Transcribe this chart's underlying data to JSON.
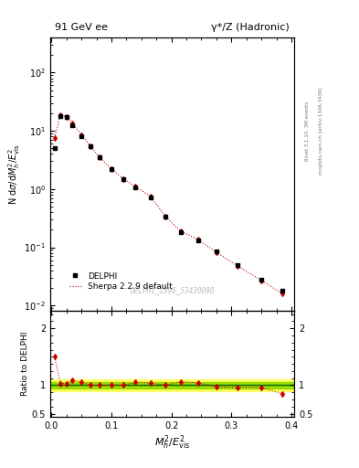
{
  "title_left": "91 GeV ee",
  "title_right": "γ*/Z (Hadronic)",
  "ylabel_main": "N dσ/dMᴴ²/E²_vis",
  "ylabel_ratio": "Ratio to DELPHI",
  "xlabel": "M²_h/E²_vis",
  "watermark": "DELPHI_1996_S3430090",
  "right_label_top": "Rivet 3.1.10, 3M events",
  "right_label_bottom": "mcplots.cern.ch [arXiv:1306.3436]",
  "delphi_x": [
    0.005,
    0.015,
    0.025,
    0.035,
    0.05,
    0.065,
    0.08,
    0.1,
    0.12,
    0.14,
    0.165,
    0.19,
    0.215,
    0.245,
    0.275,
    0.31,
    0.35,
    0.385
  ],
  "delphi_y": [
    5.0,
    18.0,
    17.0,
    12.5,
    8.0,
    5.5,
    3.5,
    2.2,
    1.5,
    1.05,
    0.72,
    0.34,
    0.18,
    0.13,
    0.085,
    0.05,
    0.028,
    0.018
  ],
  "sherpa_x": [
    0.005,
    0.015,
    0.025,
    0.035,
    0.05,
    0.065,
    0.08,
    0.1,
    0.12,
    0.14,
    0.165,
    0.19,
    0.215,
    0.245,
    0.275,
    0.31,
    0.35,
    0.385
  ],
  "sherpa_y": [
    7.5,
    18.5,
    17.5,
    13.5,
    8.5,
    5.5,
    3.5,
    2.2,
    1.5,
    1.1,
    0.75,
    0.34,
    0.19,
    0.135,
    0.082,
    0.048,
    0.027,
    0.016
  ],
  "ratio_y": [
    1.5,
    1.03,
    1.03,
    1.08,
    1.06,
    1.0,
    1.0,
    1.0,
    1.0,
    1.05,
    1.04,
    1.0,
    1.06,
    1.04,
    0.97,
    0.96,
    0.96,
    0.85
  ],
  "delphi_color": "#000000",
  "sherpa_color": "#cc0000",
  "band_yellow": "#ffff66",
  "band_green": "#99dd00",
  "line_green": "#006600",
  "ylim_main": [
    0.008,
    400
  ],
  "ylim_ratio": [
    0.45,
    2.3
  ],
  "xlim": [
    -0.002,
    0.405
  ]
}
